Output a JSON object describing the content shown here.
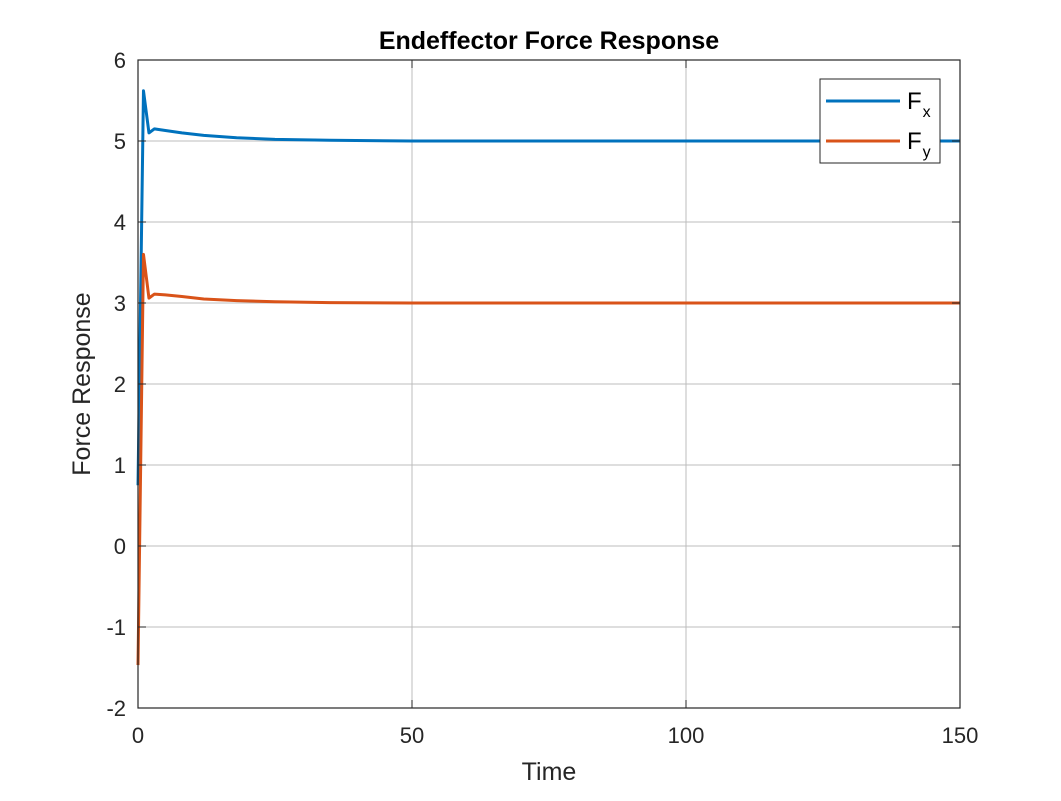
{
  "chart_data": {
    "type": "line",
    "title": "Endeffector Force Response",
    "xlabel": "Time",
    "ylabel": "Force Response",
    "xlim": [
      0,
      150
    ],
    "ylim": [
      -2,
      6
    ],
    "xticks": [
      0,
      50,
      100,
      150
    ],
    "yticks": [
      -2,
      -1,
      0,
      1,
      2,
      3,
      4,
      5,
      6
    ],
    "grid": true,
    "legend_position": "top-right",
    "series": [
      {
        "name_main": "F",
        "name_sub": "x",
        "color": "#0072BD",
        "x": [
          0,
          1,
          2,
          3,
          5,
          8,
          12,
          18,
          25,
          35,
          50,
          75,
          100,
          125,
          150
        ],
        "y": [
          0.75,
          5.62,
          5.1,
          5.15,
          5.13,
          5.1,
          5.07,
          5.04,
          5.02,
          5.01,
          5.0,
          5.0,
          5.0,
          5.0,
          5.0
        ]
      },
      {
        "name_main": "F",
        "name_sub": "y",
        "color": "#D95319",
        "x": [
          0,
          1,
          2,
          3,
          5,
          8,
          12,
          18,
          25,
          35,
          50,
          75,
          100,
          125,
          150
        ],
        "y": [
          -1.47,
          3.6,
          3.06,
          3.11,
          3.1,
          3.08,
          3.05,
          3.03,
          3.015,
          3.005,
          3.0,
          3.0,
          3.0,
          3.0,
          3.0
        ]
      }
    ]
  }
}
